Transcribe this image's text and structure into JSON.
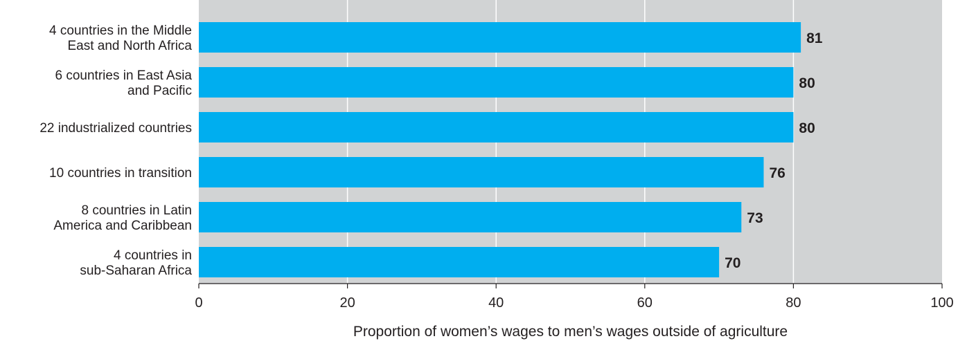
{
  "chart_data": {
    "type": "bar",
    "orientation": "horizontal",
    "categories": [
      [
        "4 countries in the Middle",
        "East and North Africa"
      ],
      [
        "6 countries in East Asia",
        "and Pacific"
      ],
      [
        "22 industrialized countries"
      ],
      [
        "10 countries in transition"
      ],
      [
        "8 countries in Latin",
        "America and Caribbean"
      ],
      [
        "4 countries in",
        "sub-Saharan Africa"
      ]
    ],
    "values": [
      81,
      80,
      80,
      76,
      73,
      70
    ],
    "value_labels": [
      "81",
      "80",
      "80",
      "76",
      "73",
      "70"
    ],
    "xlabel": "Proportion of women’s wages to men’s wages outside of agriculture",
    "ylabel": "",
    "xlim": [
      0,
      100
    ],
    "xticks": [
      0,
      20,
      40,
      60,
      80,
      100
    ],
    "xtick_labels": [
      "0",
      "20",
      "40",
      "60",
      "80",
      "100"
    ],
    "grid": true,
    "colors": {
      "bar": "#00aeef",
      "plot_background": "#d1d3d4",
      "gridline": "#ffffff",
      "axis": "#231f20",
      "text": "#231f20"
    }
  }
}
